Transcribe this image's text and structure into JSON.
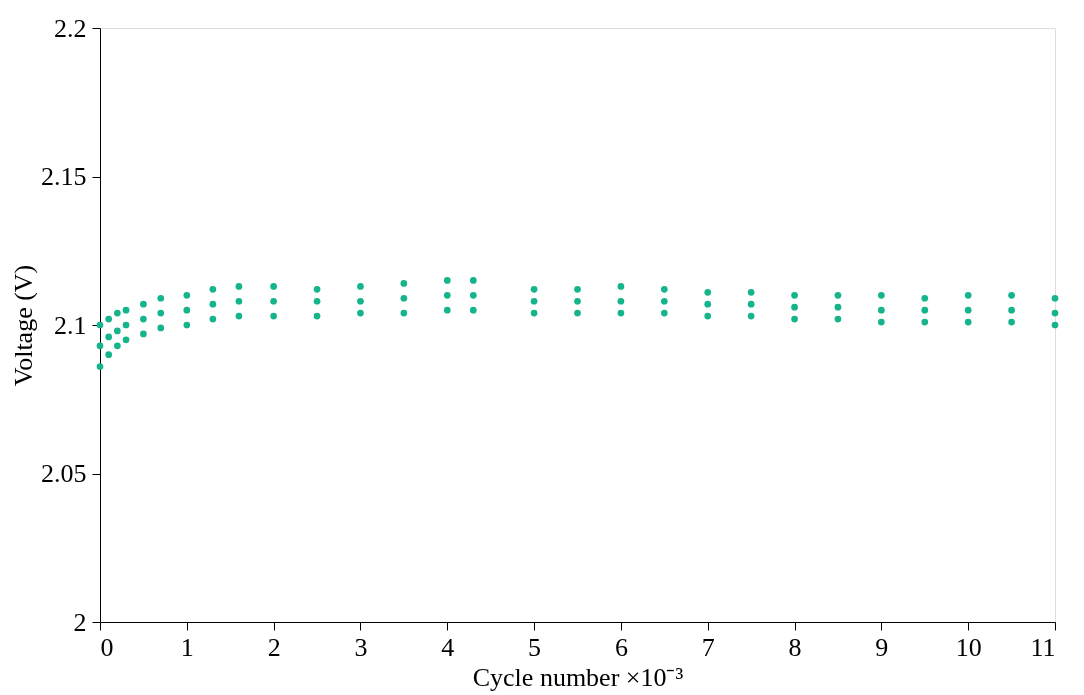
{
  "chart_data": {
    "type": "scatter",
    "xlabel": "Cycle number ×10⁻³",
    "ylabel": "Voltage (V)",
    "xlim": [
      0,
      11
    ],
    "xticks": [
      0,
      1,
      2,
      3,
      4,
      5,
      6,
      7,
      8,
      9,
      10,
      11
    ],
    "ylim": [
      2,
      2.2
    ],
    "yticks": [
      2,
      2.05,
      2.1,
      2.15,
      2.2
    ],
    "grid": false,
    "marker": "circle",
    "series": [
      {
        "color": "#16b48c",
        "x": [
          0,
          0,
          0,
          0.1,
          0.1,
          0.1,
          0.2,
          0.2,
          0.2,
          0.3,
          0.3,
          0.3,
          0.5,
          0.5,
          0.5,
          0.7,
          0.7,
          0.7,
          1,
          1,
          1,
          1.3,
          1.3,
          1.3,
          1.6,
          1.6,
          1.6,
          2,
          2,
          2,
          2.5,
          2.5,
          2.5,
          3,
          3,
          3,
          3.5,
          3.5,
          3.5,
          4,
          4,
          4,
          4.3,
          4.3,
          4.3,
          5,
          5,
          5,
          5.5,
          5.5,
          5.5,
          6,
          6,
          6,
          6.5,
          6.5,
          6.5,
          7,
          7,
          7,
          7.5,
          7.5,
          7.5,
          8,
          8,
          8,
          8.5,
          8.5,
          8.5,
          9,
          9,
          9,
          9.5,
          9.5,
          9.5,
          10,
          10,
          10,
          10.5,
          10.5,
          10.5,
          11,
          11,
          11
        ],
        "values": [
          2.086,
          2.093,
          2.1,
          2.09,
          2.096,
          2.102,
          2.093,
          2.098,
          2.104,
          2.095,
          2.1,
          2.105,
          2.097,
          2.102,
          2.107,
          2.099,
          2.104,
          2.109,
          2.1,
          2.105,
          2.11,
          2.102,
          2.107,
          2.112,
          2.103,
          2.108,
          2.113,
          2.103,
          2.108,
          2.113,
          2.103,
          2.108,
          2.112,
          2.104,
          2.108,
          2.113,
          2.104,
          2.109,
          2.114,
          2.105,
          2.11,
          2.115,
          2.105,
          2.11,
          2.115,
          2.104,
          2.108,
          2.112,
          2.104,
          2.108,
          2.112,
          2.104,
          2.108,
          2.113,
          2.104,
          2.108,
          2.112,
          2.103,
          2.107,
          2.111,
          2.103,
          2.107,
          2.111,
          2.102,
          2.106,
          2.11,
          2.102,
          2.106,
          2.11,
          2.101,
          2.105,
          2.11,
          2.101,
          2.105,
          2.109,
          2.101,
          2.105,
          2.11,
          2.101,
          2.105,
          2.11,
          2.1,
          2.104,
          2.109
        ]
      }
    ]
  }
}
